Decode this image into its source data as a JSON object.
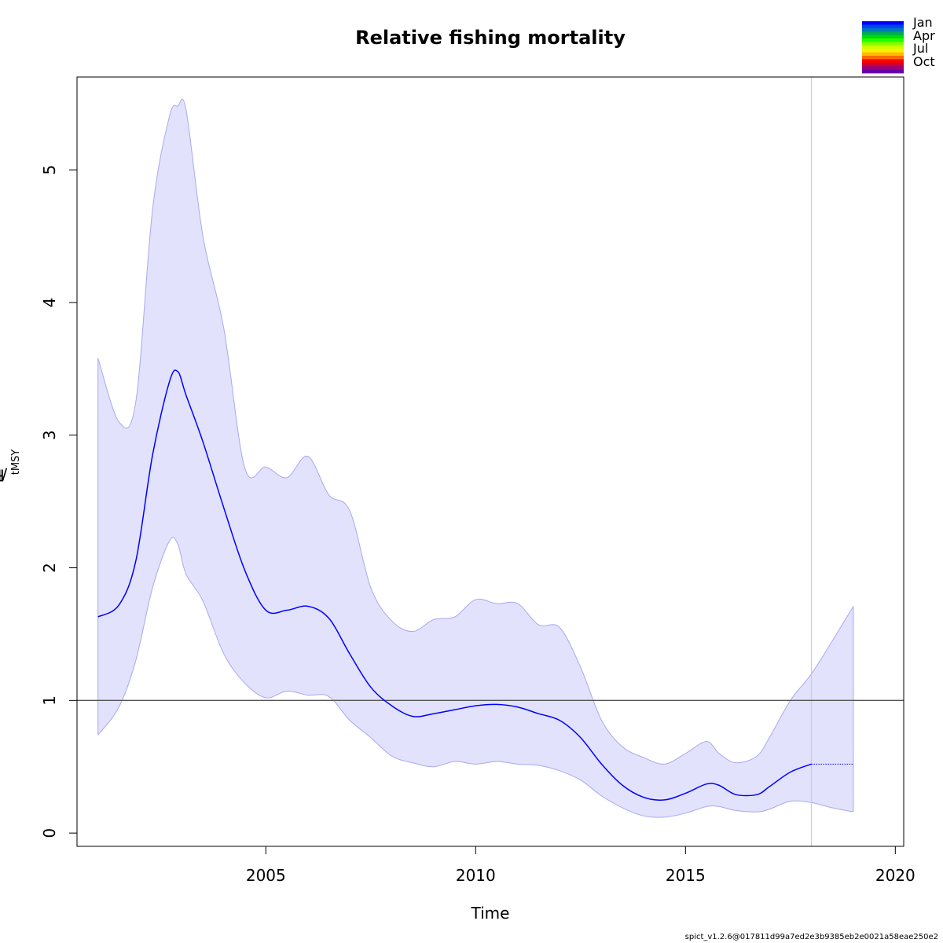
{
  "chart_data": {
    "type": "line",
    "title": "Relative fishing mortality",
    "xlabel": "Time",
    "ylabel": {
      "main": "F",
      "sub1": "t",
      "sep": "/F",
      "sub2": "MSY"
    },
    "xlim": [
      2000.5,
      2020.2
    ],
    "ylim": [
      -0.1,
      5.7
    ],
    "xticks": [
      2005,
      2010,
      2015,
      2020
    ],
    "xtick_labels": [
      "2005",
      "2010",
      "2015",
      "2020"
    ],
    "yticks": [
      0,
      1,
      2,
      3,
      4,
      5
    ],
    "ytick_labels": [
      "0",
      "1",
      "2",
      "3",
      "4",
      "5"
    ],
    "reference_line_y": 1,
    "vertical_line_x": 2018,
    "grid": false,
    "colors": {
      "line": "#0000ff",
      "band": "#e2e2fc",
      "band_edge": "#a8a8f0",
      "ref": "#555555",
      "vline": "#cccccc"
    },
    "series": [
      {
        "role": "estimate",
        "x": [
          2001.0,
          2001.5,
          2001.9,
          2002.3,
          2002.7,
          2002.9,
          2003.1,
          2003.5,
          2004.0,
          2004.5,
          2005.0,
          2005.5,
          2006.0,
          2006.5,
          2007.0,
          2007.5,
          2008.0,
          2008.5,
          2009.0,
          2009.5,
          2010.0,
          2010.5,
          2011.0,
          2011.5,
          2012.0,
          2012.5,
          2013.0,
          2013.5,
          2014.0,
          2014.5,
          2015.0,
          2015.5,
          2015.8,
          2016.2,
          2016.7,
          2017.0,
          2017.5,
          2018.0
        ],
        "y": [
          1.63,
          1.72,
          2.05,
          2.85,
          3.4,
          3.48,
          3.3,
          2.95,
          2.45,
          1.98,
          1.68,
          1.68,
          1.71,
          1.62,
          1.35,
          1.1,
          0.96,
          0.88,
          0.9,
          0.93,
          0.96,
          0.97,
          0.95,
          0.9,
          0.85,
          0.72,
          0.52,
          0.36,
          0.27,
          0.25,
          0.3,
          0.37,
          0.36,
          0.29,
          0.29,
          0.35,
          0.46,
          0.52
        ]
      },
      {
        "role": "forecast",
        "x": [
          2018.0,
          2019.0
        ],
        "y": [
          0.52,
          0.52
        ]
      }
    ],
    "confidence_band": {
      "x": [
        2001.0,
        2001.5,
        2001.9,
        2002.3,
        2002.7,
        2002.9,
        2003.1,
        2003.5,
        2004.0,
        2004.5,
        2005.0,
        2005.5,
        2006.0,
        2006.5,
        2007.0,
        2007.5,
        2008.0,
        2008.5,
        2009.0,
        2009.5,
        2010.0,
        2010.5,
        2011.0,
        2011.5,
        2012.0,
        2012.5,
        2013.0,
        2013.5,
        2014.0,
        2014.5,
        2015.0,
        2015.5,
        2015.8,
        2016.2,
        2016.7,
        2017.0,
        2017.5,
        2018.0,
        2018.5,
        2019.0
      ],
      "lower": [
        0.74,
        0.95,
        1.3,
        1.85,
        2.2,
        2.18,
        1.95,
        1.75,
        1.35,
        1.13,
        1.02,
        1.07,
        1.04,
        1.03,
        0.85,
        0.72,
        0.58,
        0.53,
        0.5,
        0.54,
        0.52,
        0.54,
        0.52,
        0.51,
        0.47,
        0.4,
        0.28,
        0.19,
        0.13,
        0.12,
        0.15,
        0.2,
        0.2,
        0.17,
        0.16,
        0.18,
        0.24,
        0.23,
        0.19,
        0.16
      ],
      "upper": [
        3.58,
        3.1,
        3.25,
        4.7,
        5.4,
        5.48,
        5.45,
        4.5,
        3.8,
        2.75,
        2.76,
        2.68,
        2.84,
        2.55,
        2.43,
        1.85,
        1.6,
        1.52,
        1.61,
        1.63,
        1.76,
        1.73,
        1.73,
        1.57,
        1.55,
        1.25,
        0.85,
        0.65,
        0.57,
        0.52,
        0.6,
        0.69,
        0.6,
        0.53,
        0.58,
        0.72,
        1.0,
        1.2,
        1.45,
        1.71
      ]
    },
    "legend": {
      "placement": "top-right",
      "labels": [
        "Jan",
        "Apr",
        "Jul",
        "Oct"
      ],
      "colors": [
        "#0000ff",
        "#0044ee",
        "#0077bb",
        "#00aa55",
        "#00dd00",
        "#22ff00",
        "#88ff00",
        "#ccff00",
        "#ffee00",
        "#ffbb00",
        "#ff6600",
        "#ff0000",
        "#cc0033",
        "#990077",
        "#6600aa"
      ]
    },
    "footer": "spict_v1.2.6@017811d99a7ed2e3b9385eb2e0021a58eae250e2"
  }
}
